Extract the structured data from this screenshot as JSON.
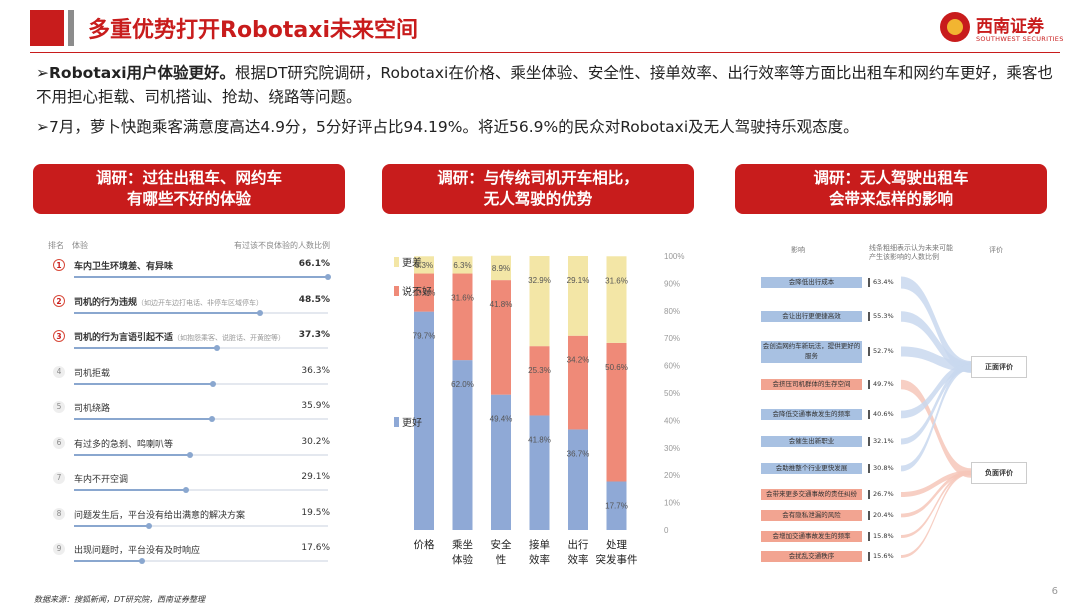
{
  "header": {
    "title": "多重优势打开Robotaxi未来空间",
    "logo_cn": "西南证券",
    "logo_en": "SOUTHWEST SECURITIES"
  },
  "bullets": [
    {
      "arrow": "➢",
      "bold": "Robotaxi用户体验更好。",
      "text": "根据DT研究院调研，Robotaxi在价格、乘坐体验、安全性、接单效率、出行效率等方面比出租车和网约车更好，乘客也不用担心拒载、司机搭讪、抢劫、绕路等问题。"
    },
    {
      "arrow": "➢",
      "bold": "",
      "text": "7月，萝卜快跑乘客满意度高达4.9分，5分好评占比94.19%。将近56.9%的民众对Robotaxi及无人驾驶持乐观态度。"
    }
  ],
  "panels": [
    {
      "line1": "调研：过往出租车、网约车",
      "line2": "有哪些不好的体验"
    },
    {
      "line1": "调研：与传统司机开车相比，",
      "line2": "无人驾驶的优势"
    },
    {
      "line1": "调研：无人驾驶出租车",
      "line2": "会带来怎样的影响"
    }
  ],
  "survey": {
    "col_rank": "排名",
    "col_item": "体验",
    "col_pct": "有过该不良体验的人数比例",
    "items": [
      {
        "rank": "1",
        "label": "车内卫生环境差、有异味",
        "sub": "",
        "pct": "66.1%",
        "value": 66.1
      },
      {
        "rank": "2",
        "label": "司机的行为违规",
        "sub": "（如边开车边打电话、非停车区域停车）",
        "pct": "48.5%",
        "value": 48.5
      },
      {
        "rank": "3",
        "label": "司机的行为言语引起不适",
        "sub": "（如抱怨乘客、说脏话、开黄腔等）",
        "pct": "37.3%",
        "value": 37.3
      },
      {
        "rank": "4",
        "label": "司机拒载",
        "sub": "",
        "pct": "36.3%",
        "value": 36.3
      },
      {
        "rank": "5",
        "label": "司机绕路",
        "sub": "",
        "pct": "35.9%",
        "value": 35.9
      },
      {
        "rank": "6",
        "label": "有过多的急刹、鸣喇叭等",
        "sub": "",
        "pct": "30.2%",
        "value": 30.2
      },
      {
        "rank": "7",
        "label": "车内不开空调",
        "sub": "",
        "pct": "29.1%",
        "value": 29.1
      },
      {
        "rank": "8",
        "label": "问题发生后，平台没有给出满意的解决方案",
        "sub": "",
        "pct": "19.5%",
        "value": 19.5
      },
      {
        "rank": "9",
        "label": "出现问题时，平台没有及时响应",
        "sub": "",
        "pct": "17.6%",
        "value": 17.6
      }
    ]
  },
  "chart_data": {
    "type": "bar",
    "stacked": true,
    "percent_stacked": true,
    "categories": [
      "价格",
      "乘坐体验",
      "安全性",
      "接单效率",
      "出行效率",
      "处理突发事件"
    ],
    "series": [
      {
        "name": "更好",
        "color": "#8fa9d6",
        "values": [
          79.7,
          62.0,
          49.4,
          41.8,
          36.7,
          17.7
        ],
        "labels": [
          "79.7%",
          "62.0%",
          "49.4%",
          "41.8%",
          "36.7%",
          "17.7%"
        ]
      },
      {
        "name": "说不好",
        "color": "#ef8a78",
        "values": [
          13.9,
          31.6,
          41.8,
          25.3,
          34.2,
          50.6
        ],
        "labels": [
          "13.9%",
          "31.6%",
          "41.8%",
          "25.3%",
          "34.2%",
          "50.6%"
        ]
      },
      {
        "name": "更差",
        "color": "#f3e6a6",
        "values": [
          6.3,
          6.3,
          8.9,
          32.9,
          29.1,
          31.6
        ],
        "labels": [
          "6.3%",
          "6.3%",
          "8.9%",
          "32.9%",
          "29.1%",
          "31.6%"
        ]
      }
    ],
    "yticks": [
      "0",
      "10%",
      "20%",
      "30%",
      "40%",
      "50%",
      "60%",
      "70%",
      "80%",
      "90%",
      "100%"
    ],
    "ylim": [
      0,
      100
    ],
    "legend_position": "left",
    "grid": false
  },
  "sankey": {
    "col_impact": "影响",
    "col_pct_1": "线条粗细表示认为未来可能",
    "col_pct_2": "产生该影响的人数比例",
    "col_eval": "评价",
    "items": [
      {
        "label": "会降低出行成本",
        "pct": "63.4%",
        "value": 63.4,
        "type": "pos"
      },
      {
        "label": "会让出行更便捷高效",
        "pct": "55.3%",
        "value": 55.3,
        "type": "pos"
      },
      {
        "label": "会创造网约车新玩法，提供更好的服务",
        "pct": "52.7%",
        "value": 52.7,
        "type": "pos"
      },
      {
        "label": "会挤压司机群体的生存空间",
        "pct": "49.7%",
        "value": 49.7,
        "type": "neg"
      },
      {
        "label": "会降低交通事故发生的频率",
        "pct": "40.6%",
        "value": 40.6,
        "type": "pos"
      },
      {
        "label": "会催生出新职业",
        "pct": "32.1%",
        "value": 32.1,
        "type": "pos"
      },
      {
        "label": "会助推整个行业更快发展",
        "pct": "30.8%",
        "value": 30.8,
        "type": "pos"
      },
      {
        "label": "会带来更多交通事故的责任纠纷",
        "pct": "26.7%",
        "value": 26.7,
        "type": "neg"
      },
      {
        "label": "会有隐私泄漏的风险",
        "pct": "20.4%",
        "value": 20.4,
        "type": "neg"
      },
      {
        "label": "会增加交通事故发生的频率",
        "pct": "15.8%",
        "value": 15.8,
        "type": "neg"
      },
      {
        "label": "会扰乱交通秩序",
        "pct": "15.6%",
        "value": 15.6,
        "type": "neg"
      }
    ],
    "eval_pos": "正面评价",
    "eval_neg": "负面评价"
  },
  "footer": {
    "source": "数据来源：搜狐新闻，DT研究院，西南证券整理",
    "page": "6"
  },
  "colors": {
    "brand": "#c81c1c",
    "better": "#8fa9d6",
    "unsure": "#ef8a78",
    "worse": "#f3e6a6"
  }
}
